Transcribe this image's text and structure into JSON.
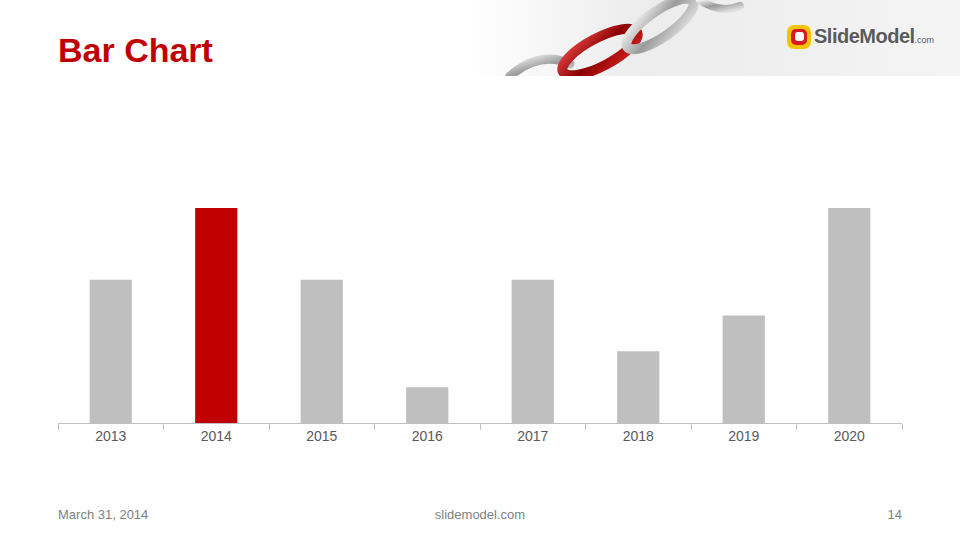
{
  "logo": {
    "text": "SlideModel",
    "suffix": ".com"
  },
  "footer": {
    "date": "March 31, 2014",
    "site": "slidemodel.com",
    "page": "14"
  },
  "chart_data": {
    "type": "bar",
    "title": "Bar Chart",
    "categories": [
      "2013",
      "2014",
      "2015",
      "2016",
      "2017",
      "2018",
      "2019",
      "2020"
    ],
    "values": [
      4,
      6,
      4,
      1,
      4,
      2,
      3,
      6
    ],
    "colors": [
      "#bfbfbf",
      "#c00000",
      "#bfbfbf",
      "#bfbfbf",
      "#bfbfbf",
      "#bfbfbf",
      "#bfbfbf",
      "#bfbfbf"
    ],
    "ylim": [
      0,
      6
    ],
    "grid": false,
    "tick_labels": "x"
  }
}
